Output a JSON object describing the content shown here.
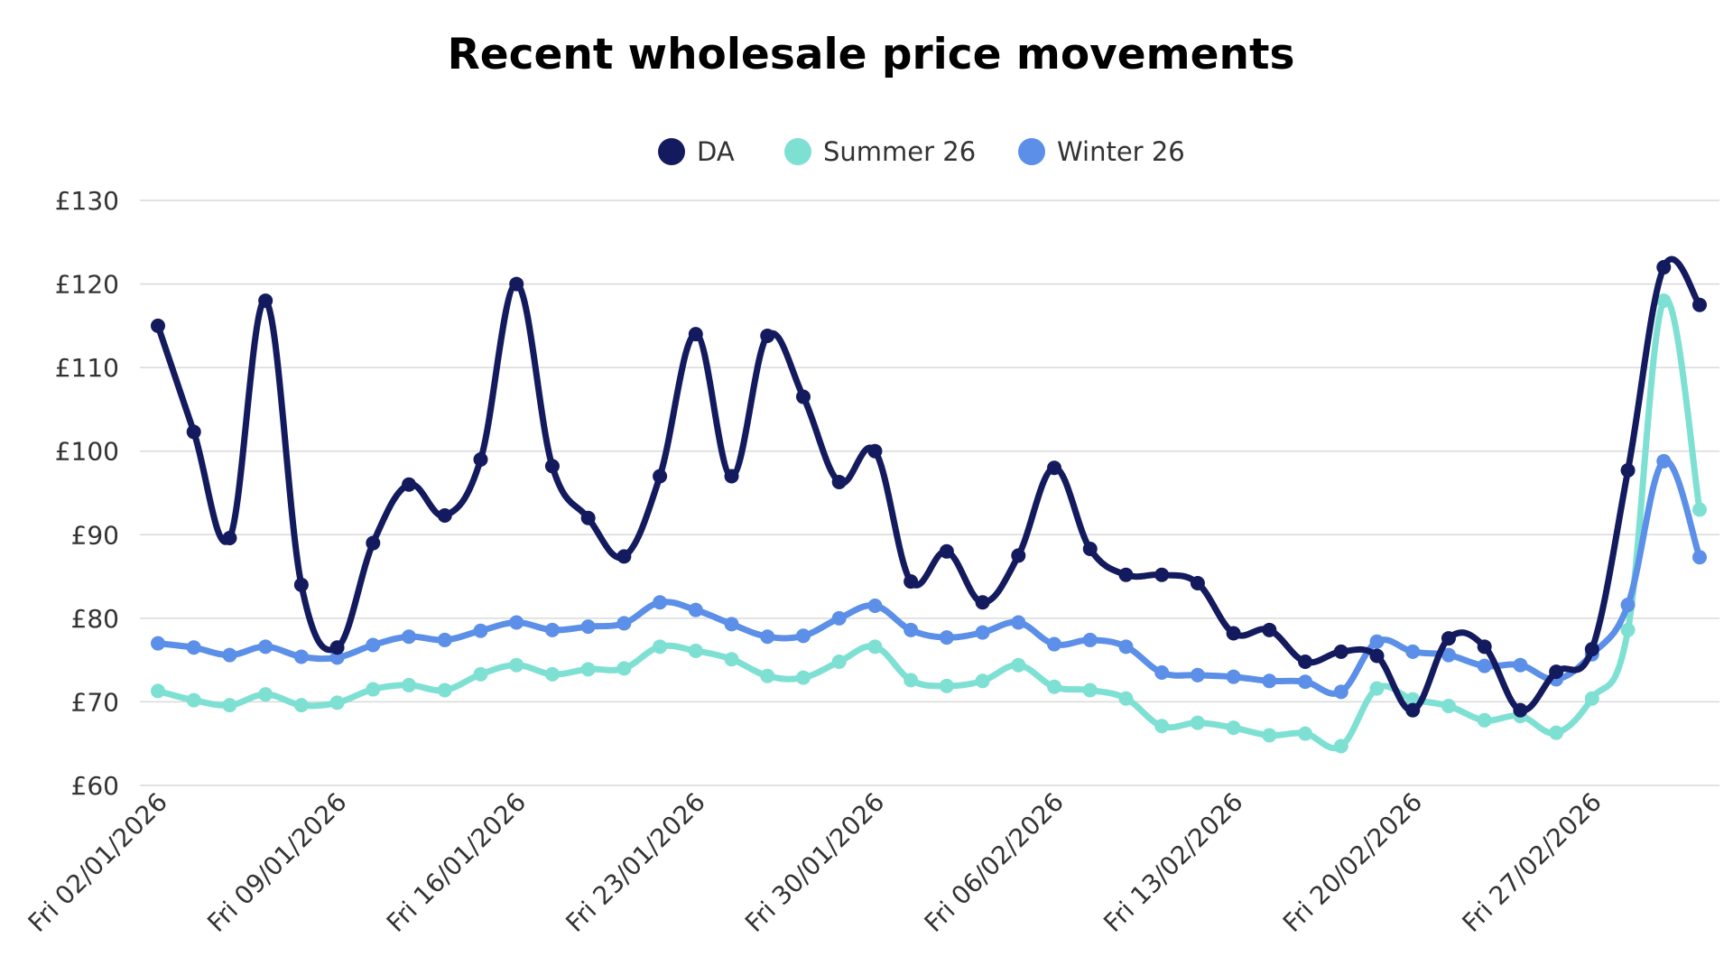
{
  "chart_data": {
    "type": "line",
    "title": "Recent wholesale price movements",
    "xlabel": "",
    "ylabel": "",
    "ylim": [
      60,
      130
    ],
    "yticks": [
      60,
      70,
      80,
      90,
      100,
      110,
      120,
      130
    ],
    "ytick_labels": [
      "£60",
      "£70",
      "£80",
      "£90",
      "£100",
      "£110",
      "£120",
      "£130"
    ],
    "grid": true,
    "legend_position": "top-center",
    "x_tick_labels": [
      {
        "index": 0,
        "label": "Fri 02/01/2026"
      },
      {
        "index": 5,
        "label": "Fri 09/01/2026"
      },
      {
        "index": 10,
        "label": "Fri 16/01/2026"
      },
      {
        "index": 15,
        "label": "Fri 23/01/2026"
      },
      {
        "index": 20,
        "label": "Fri 30/01/2026"
      },
      {
        "index": 25,
        "label": "Fri 06/02/2026"
      },
      {
        "index": 30,
        "label": "Fri 13/02/2026"
      },
      {
        "index": 35,
        "label": "Fri 20/02/2026"
      },
      {
        "index": 40,
        "label": "Fri 27/02/2026"
      }
    ],
    "point_count": 44,
    "series": [
      {
        "name": "DA",
        "color": "#131a5e",
        "values": [
          115,
          102.3,
          89.6,
          118,
          84,
          76.5,
          89,
          96,
          92.3,
          99,
          120,
          98.2,
          92,
          87.4,
          97,
          114,
          97,
          113.8,
          106.5,
          96.3,
          100,
          84.4,
          88,
          81.9,
          87.5,
          98,
          88.3,
          85.2,
          85.2,
          84.2,
          78.2,
          78.6,
          74.8,
          76,
          75.5,
          69,
          77.6,
          76.6,
          69,
          73.6,
          76.3,
          97.7,
          122,
          117.5
        ]
      },
      {
        "name": "Summer 26",
        "color": "#7ee0d3",
        "values": [
          71.3,
          70.2,
          69.6,
          70.9,
          69.6,
          69.9,
          71.5,
          72,
          71.4,
          73.3,
          74.4,
          73.3,
          73.9,
          74,
          76.6,
          76.1,
          75.1,
          73.1,
          72.9,
          74.8,
          76.6,
          72.6,
          71.9,
          72.5,
          74.4,
          71.8,
          71.4,
          70.4,
          67.1,
          67.5,
          66.9,
          66,
          66.2,
          64.7,
          71.6,
          70.3,
          69.5,
          67.8,
          68.3,
          66.3,
          70.4,
          78.6,
          118,
          93
        ]
      },
      {
        "name": "Winter 26",
        "color": "#5b8fe8",
        "values": [
          77,
          76.5,
          75.6,
          76.6,
          75.4,
          75.3,
          76.8,
          77.8,
          77.4,
          78.5,
          79.5,
          78.6,
          79,
          79.4,
          81.9,
          81,
          79.3,
          77.8,
          77.9,
          80,
          81.5,
          78.6,
          77.7,
          78.3,
          79.5,
          76.9,
          77.4,
          76.6,
          73.5,
          73.2,
          73,
          72.5,
          72.4,
          71.2,
          77.2,
          76,
          75.6,
          74.3,
          74.4,
          72.7,
          75.7,
          81.6,
          98.8,
          87.3
        ]
      }
    ]
  }
}
